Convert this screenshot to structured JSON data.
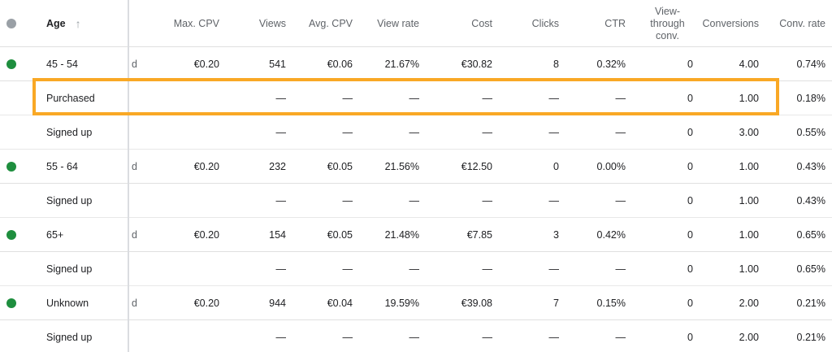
{
  "columns": {
    "age": "Age",
    "max_cpv": "Max. CPV",
    "views": "Views",
    "avg_cpv": "Avg. CPV",
    "view_rate": "View rate",
    "cost": "Cost",
    "clicks": "Clicks",
    "ctr": "CTR",
    "view_through_conv": "View-\nthrough\nconv.",
    "conversions": "Conversions",
    "conv_rate": "Conv. rate"
  },
  "icons": {
    "sort": "arrow-up-icon",
    "status": "status-dot-icon"
  },
  "colors": {
    "enabled": "#1e8e3e",
    "highlight": "#f9a825"
  },
  "rows": [
    {
      "type": "group",
      "age": "45 - 54",
      "cut": "d",
      "max_cpv": "€0.20",
      "views": "541",
      "avg_cpv": "€0.06",
      "view_rate": "21.67%",
      "cost": "€30.82",
      "clicks": "8",
      "ctr": "0.32%",
      "vtc": "0",
      "conversions": "4.00",
      "conv_rate": "0.74%"
    },
    {
      "type": "sub",
      "age": "Purchased",
      "cut": "",
      "max_cpv": "",
      "views": "—",
      "avg_cpv": "—",
      "view_rate": "—",
      "cost": "—",
      "clicks": "—",
      "ctr": "—",
      "vtc": "0",
      "conversions": "1.00",
      "conv_rate": "0.18%"
    },
    {
      "type": "sub",
      "age": "Signed up",
      "cut": "",
      "max_cpv": "",
      "views": "—",
      "avg_cpv": "—",
      "view_rate": "—",
      "cost": "—",
      "clicks": "—",
      "ctr": "—",
      "vtc": "0",
      "conversions": "3.00",
      "conv_rate": "0.55%"
    },
    {
      "type": "group",
      "age": "55 - 64",
      "cut": "d",
      "max_cpv": "€0.20",
      "views": "232",
      "avg_cpv": "€0.05",
      "view_rate": "21.56%",
      "cost": "€12.50",
      "clicks": "0",
      "ctr": "0.00%",
      "vtc": "0",
      "conversions": "1.00",
      "conv_rate": "0.43%"
    },
    {
      "type": "sub",
      "age": "Signed up",
      "cut": "",
      "max_cpv": "",
      "views": "—",
      "avg_cpv": "—",
      "view_rate": "—",
      "cost": "—",
      "clicks": "—",
      "ctr": "—",
      "vtc": "0",
      "conversions": "1.00",
      "conv_rate": "0.43%"
    },
    {
      "type": "group",
      "age": "65+",
      "cut": "d",
      "max_cpv": "€0.20",
      "views": "154",
      "avg_cpv": "€0.05",
      "view_rate": "21.48%",
      "cost": "€7.85",
      "clicks": "3",
      "ctr": "0.42%",
      "vtc": "0",
      "conversions": "1.00",
      "conv_rate": "0.65%"
    },
    {
      "type": "sub",
      "age": "Signed up",
      "cut": "",
      "max_cpv": "",
      "views": "—",
      "avg_cpv": "—",
      "view_rate": "—",
      "cost": "—",
      "clicks": "—",
      "ctr": "—",
      "vtc": "0",
      "conversions": "1.00",
      "conv_rate": "0.65%"
    },
    {
      "type": "group",
      "age": "Unknown",
      "cut": "d",
      "max_cpv": "€0.20",
      "views": "944",
      "avg_cpv": "€0.04",
      "view_rate": "19.59%",
      "cost": "€39.08",
      "clicks": "7",
      "ctr": "0.15%",
      "vtc": "0",
      "conversions": "2.00",
      "conv_rate": "0.21%"
    },
    {
      "type": "sub",
      "age": "Signed up",
      "cut": "",
      "max_cpv": "",
      "views": "—",
      "avg_cpv": "—",
      "view_rate": "—",
      "cost": "—",
      "clicks": "—",
      "ctr": "—",
      "vtc": "0",
      "conversions": "2.00",
      "conv_rate": "0.21%"
    }
  ]
}
